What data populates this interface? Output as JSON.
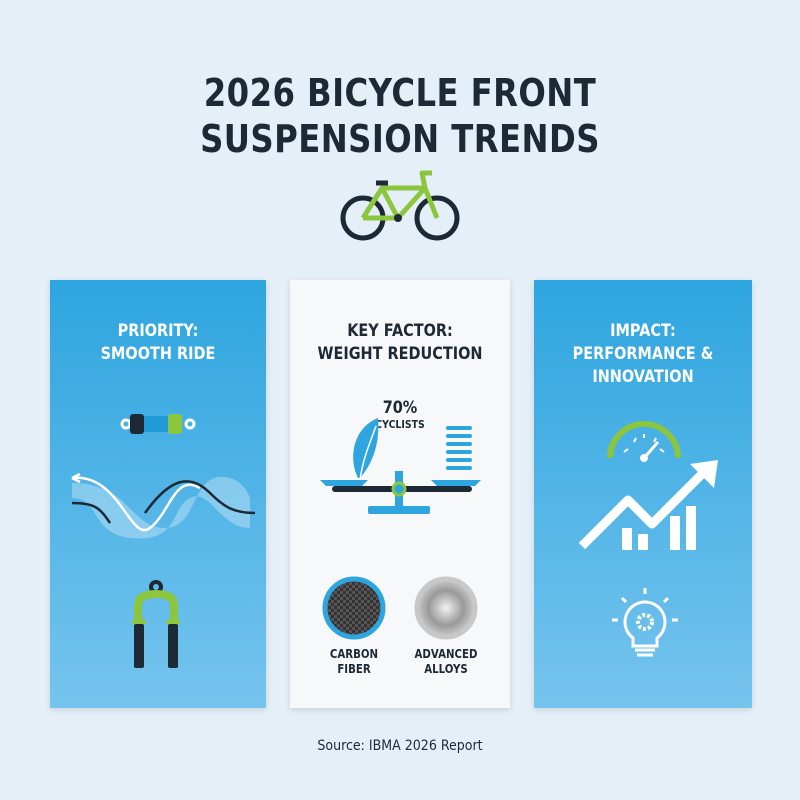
{
  "title_line1": "2026 BICYCLE FRONT",
  "title_line2": "SUSPENSION TRENDS",
  "panels": [
    {
      "heading_line1": "PRIORITY:",
      "heading_line2": "SMOOTH RIDE",
      "icons": [
        "shock-absorber-icon",
        "smooth-wave-icon",
        "suspension-fork-icon"
      ]
    },
    {
      "heading_line1": "KEY FACTOR:",
      "heading_line2": "WEIGHT REDUCTION",
      "stat": "70%",
      "stat_label": "CYCLISTS",
      "materials": [
        {
          "line1": "CARBON",
          "line2": "FIBER"
        },
        {
          "line1": "ADVANCED",
          "line2": "ALLOYS"
        }
      ]
    },
    {
      "heading_line1": "IMPACT:",
      "heading_line2": "PERFORMANCE &",
      "heading_line3": "INNOVATION",
      "icons": [
        "speedometer-icon",
        "trending-up-chart-icon",
        "lightbulb-gear-icon"
      ]
    }
  ],
  "source": "Source: IBMA 2026 Report",
  "colors": {
    "blue": "#2ea5df",
    "green": "#8cc63f",
    "dark": "#1d2935",
    "background": "#e4eff8"
  }
}
